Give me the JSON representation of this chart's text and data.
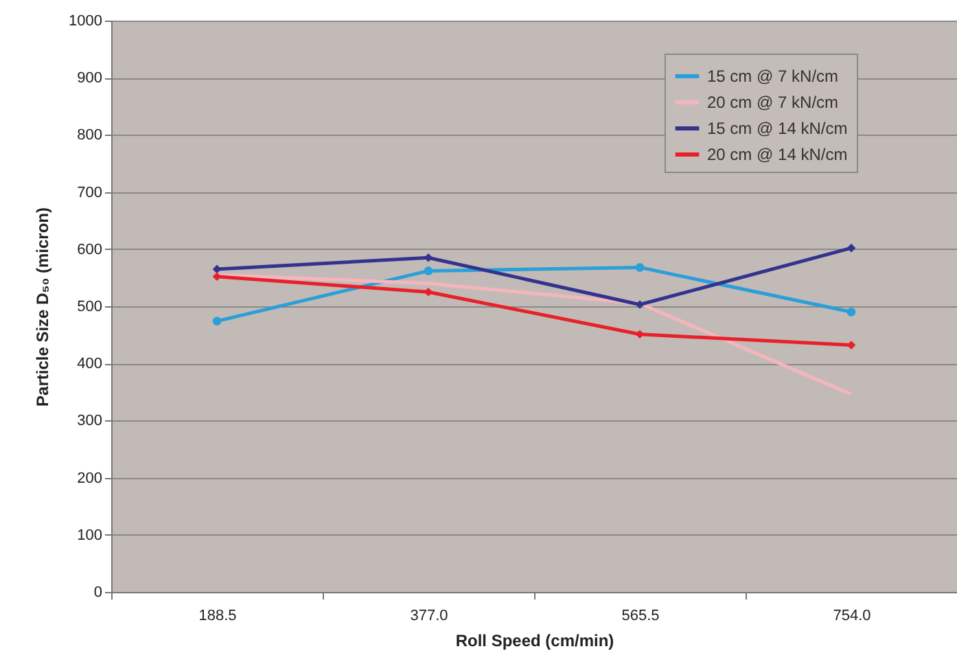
{
  "chart_data": {
    "type": "line",
    "xlabel": "Roll Speed (cm/min)",
    "ylabel": "Particle Size D₅₀ (micron)",
    "categories": [
      "188.5",
      "377.0",
      "565.5",
      "754.0"
    ],
    "series": [
      {
        "name": "15 cm @ 7 kN/cm",
        "color": "#2a9fd8",
        "marker": "circle",
        "values": [
          474,
          562,
          568,
          490
        ]
      },
      {
        "name": "20 cm @ 7 kN/cm",
        "color": "#f4b6bc",
        "marker": "none",
        "values": [
          555,
          540,
          505,
          346
        ]
      },
      {
        "name": "15 cm @ 14 kN/cm",
        "color": "#33338f",
        "marker": "diamond",
        "values": [
          565,
          585,
          503,
          602
        ]
      },
      {
        "name": "20 cm @ 14 kN/cm",
        "color": "#e8202a",
        "marker": "diamond",
        "values": [
          552,
          525,
          451,
          432
        ]
      }
    ],
    "ylim": [
      0,
      1000
    ],
    "yticks": [
      0,
      100,
      200,
      300,
      400,
      500,
      600,
      700,
      800,
      900,
      1000
    ],
    "grid": "y",
    "legend": "top right"
  }
}
